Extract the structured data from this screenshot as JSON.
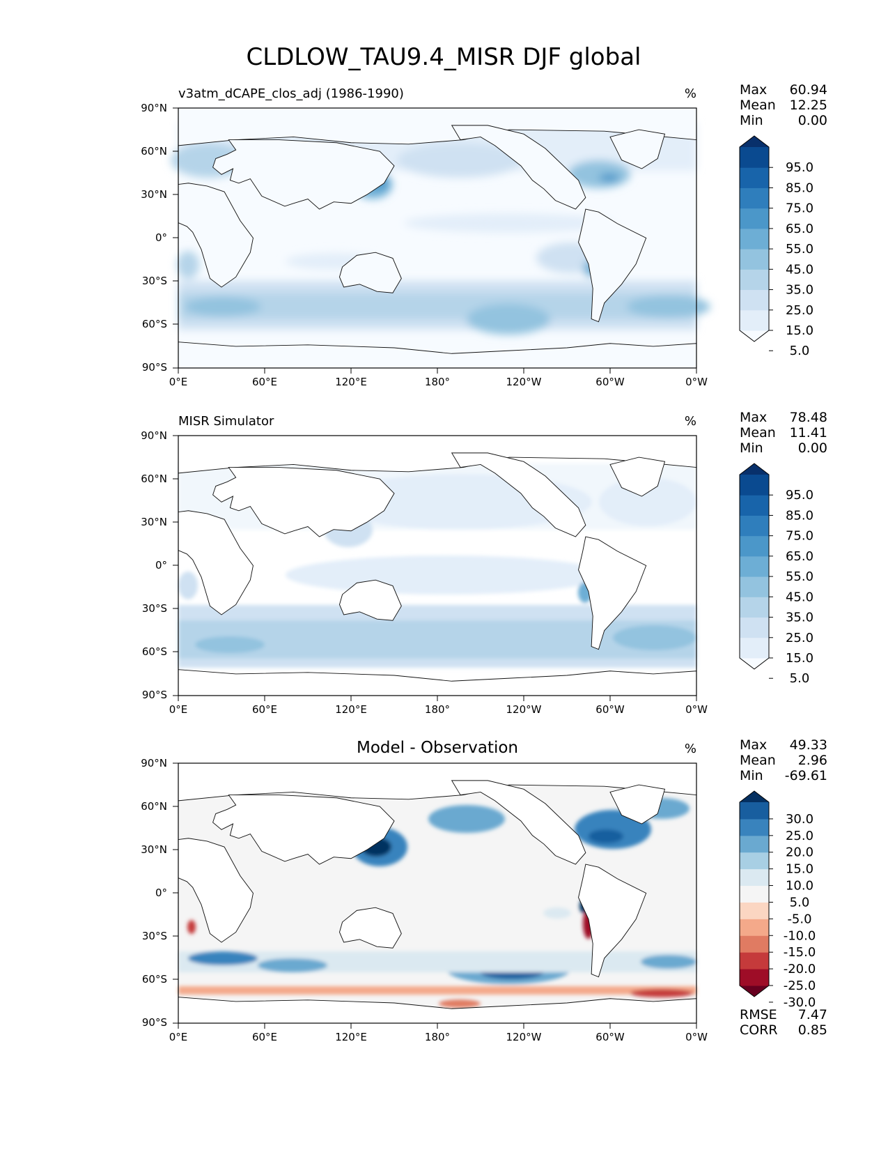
{
  "title": "CLDLOW_TAU9.4_MISR DJF global",
  "panels": [
    {
      "id": "model",
      "subtitle": "v3atm_dCAPE_clos_adj (1986-1990)",
      "units": "%",
      "stats": [
        {
          "label": "Max",
          "value": "60.94"
        },
        {
          "label": "Mean",
          "value": "12.25"
        },
        {
          "label": "Min",
          "value": "0.00"
        }
      ],
      "colorbar": {
        "ticks": [
          "95.0",
          "85.0",
          "75.0",
          "65.0",
          "55.0",
          "45.0",
          "35.0",
          "25.0",
          "15.0",
          "5.0"
        ],
        "colors": [
          "#f7fbff",
          "#e3eef9",
          "#cfe1f2",
          "#b5d4e9",
          "#93c3df",
          "#6daed5",
          "#4b97c9",
          "#2f7ebc",
          "#1864aa",
          "#0a4a90",
          "#08306b"
        ],
        "extend": "both"
      }
    },
    {
      "id": "obs",
      "subtitle": "MISR Simulator",
      "units": "%",
      "stats": [
        {
          "label": "Max",
          "value": "78.48"
        },
        {
          "label": "Mean",
          "value": "11.41"
        },
        {
          "label": "Min",
          "value": "0.00"
        }
      ],
      "colorbar": {
        "ticks": [
          "95.0",
          "85.0",
          "75.0",
          "65.0",
          "55.0",
          "45.0",
          "35.0",
          "25.0",
          "15.0",
          "5.0"
        ],
        "colors": [
          "#f7fbff",
          "#e3eef9",
          "#cfe1f2",
          "#b5d4e9",
          "#93c3df",
          "#6daed5",
          "#4b97c9",
          "#2f7ebc",
          "#1864aa",
          "#0a4a90",
          "#08306b"
        ],
        "extend": "both"
      }
    },
    {
      "id": "diff",
      "subtitle": "Model - Observation",
      "units": "%",
      "stats": [
        {
          "label": "Max",
          "value": "49.33"
        },
        {
          "label": "Mean",
          "value": "2.96"
        },
        {
          "label": "Min",
          "value": "-69.61"
        }
      ],
      "extra_stats": [
        {
          "label": "RMSE",
          "value": "7.47"
        },
        {
          "label": "CORR",
          "value": "0.85"
        }
      ],
      "colorbar": {
        "ticks": [
          "30.0",
          "25.0",
          "20.0",
          "15.0",
          "10.0",
          "5.0",
          "-5.0",
          "-10.0",
          "-15.0",
          "-20.0",
          "-25.0",
          "-30.0"
        ],
        "colors": [
          "#67001f",
          "#9e0d27",
          "#c53a3b",
          "#e07b62",
          "#f4a98a",
          "#fbd6c2",
          "#f5f5f5",
          "#dbe9f1",
          "#a8cfe4",
          "#6aa9d0",
          "#3983bd",
          "#185e9f",
          "#053061"
        ],
        "extend": "both"
      }
    }
  ],
  "map_axes": {
    "lat_ticks": [
      "90°N",
      "60°N",
      "30°N",
      "0°",
      "30°S",
      "60°S",
      "90°S"
    ],
    "lon_ticks": [
      "0°E",
      "60°E",
      "120°E",
      "180°",
      "120°W",
      "60°W",
      "0°W"
    ]
  }
}
